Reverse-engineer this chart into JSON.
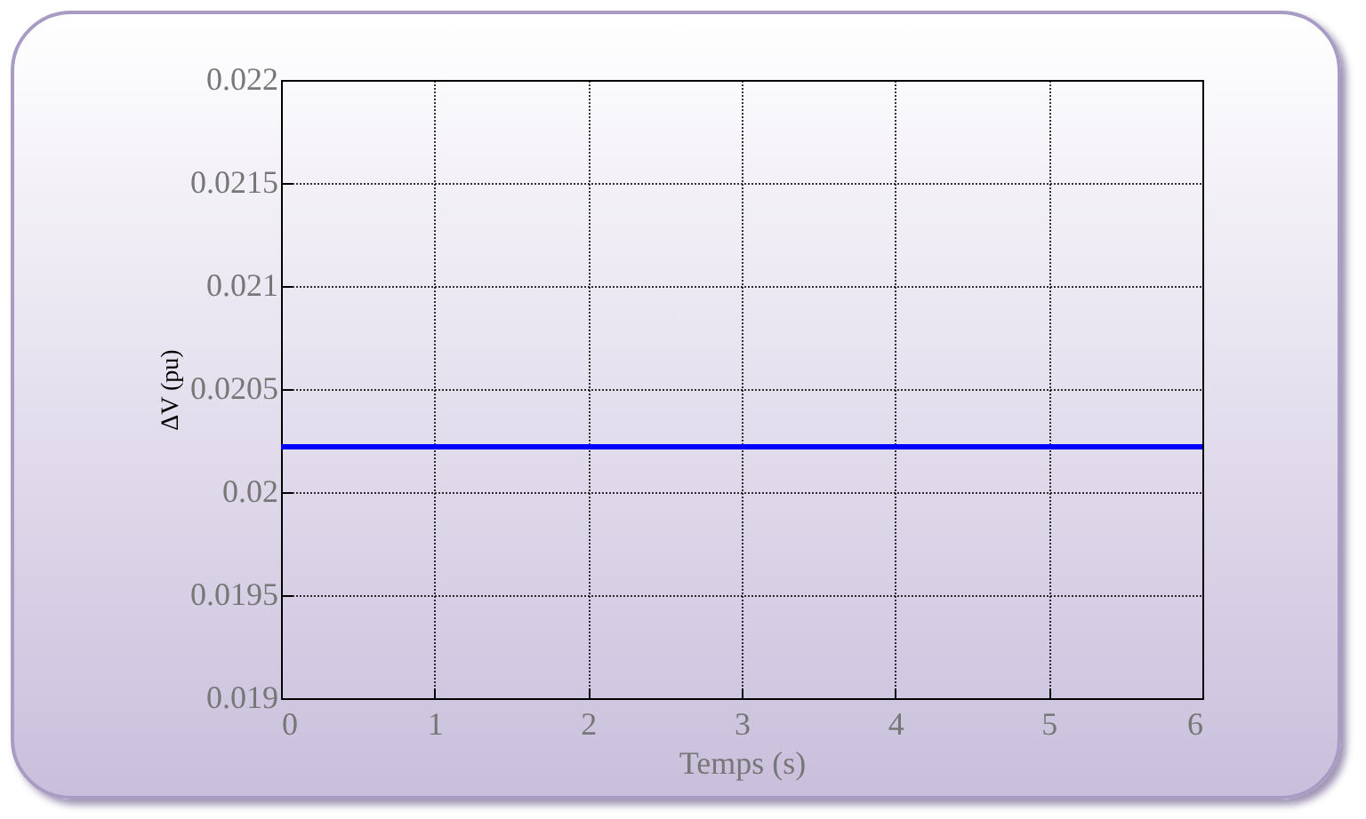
{
  "chart_data": {
    "type": "line",
    "xlabel": "Temps (s)",
    "ylabel": "ΔV (pu)",
    "x": [
      0,
      6
    ],
    "series": [
      {
        "color": "#0000ff",
        "values": [
          0.02022,
          0.02022
        ]
      }
    ],
    "xlim": [
      0,
      6
    ],
    "xticks": [
      0,
      1,
      2,
      3,
      4,
      5,
      6
    ],
    "ylim": [
      0.019,
      0.022
    ],
    "yticks": [
      0.019,
      0.0195,
      0.02,
      0.0205,
      0.021,
      0.0215,
      0.022
    ],
    "grid": true,
    "line_style": "solid",
    "marker": "none"
  }
}
